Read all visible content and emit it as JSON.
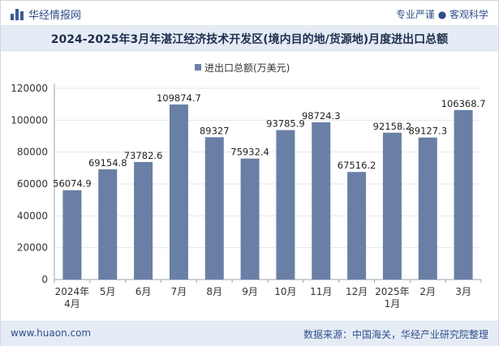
{
  "header": {
    "brand": "华经情报网",
    "slogan": "专业严谨 ● 客观科学"
  },
  "chart_data": {
    "type": "bar",
    "title": "2024-2025年3月年湛江经济技术开发区(境内目的地/货源地)月度进出口总额",
    "legend": "进出口总额(万美元)",
    "categories": [
      "2024年4月",
      "5月",
      "6月",
      "7月",
      "8月",
      "9月",
      "10月",
      "11月",
      "12月",
      "2025年1月",
      "2月",
      "3月"
    ],
    "series": [
      {
        "name": "进出口总额(万美元)",
        "values": [
          56074.9,
          69154.8,
          73782.6,
          109874.7,
          89327,
          75932.4,
          93785.9,
          98724.3,
          67516.2,
          92158.2,
          89127.3,
          106368.7
        ],
        "labels": [
          "56074.9",
          "69154.8",
          "73782.6",
          "109874.7",
          "89327",
          "75932.4",
          "93785.9",
          "98724.3",
          "67516.2",
          "92158.2",
          "89127.3",
          "106368.7"
        ]
      }
    ],
    "yticks": [
      "0",
      "20000",
      "40000",
      "60000",
      "80000",
      "100000",
      "120000"
    ],
    "ylim": [
      0,
      120000
    ],
    "grid": true,
    "bar_color": "#6a7fa6",
    "legend_position": "top-center"
  },
  "footer": {
    "site": "www.huaon.com",
    "source": "数据来源：中国海关，华经产业研究院整理"
  }
}
